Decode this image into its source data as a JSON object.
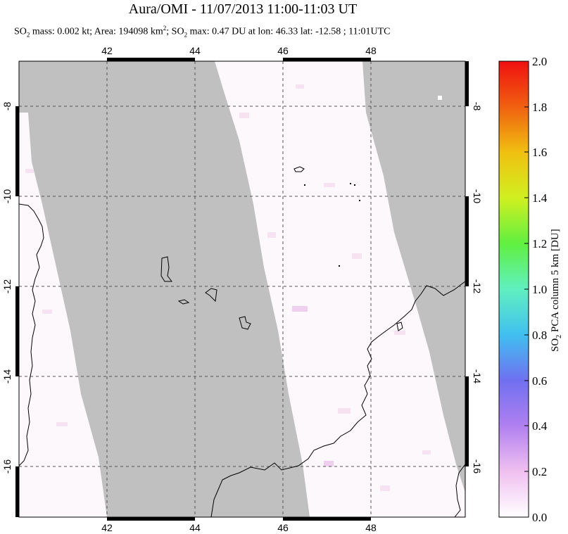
{
  "title": "Aura/OMI - 11/07/2013 11:00-11:03 UT",
  "subtitle": {
    "so2_prefix": "SO",
    "so2_sub": "2",
    "mass_text": " mass: 0.002 kt; Area: 194098 km",
    "area_sup": "2",
    "so2_prefix2": "; SO",
    "so2_sub2": "2",
    "max_text": " max: 0.47 DU at lon: 46.33 lat: -12.58 ; 11:01UTC"
  },
  "map": {
    "lon_range": [
      40,
      50
    ],
    "lat_range": [
      -17.1,
      -7.0
    ],
    "lon_ticks": [
      "42",
      "44",
      "46",
      "48"
    ],
    "lat_ticks": [
      "-8",
      "-10",
      "-12",
      "-14",
      "-16"
    ],
    "background_color": "#c0c0c0",
    "swath_color": "#fdf8fb",
    "coastline_color": "#000000",
    "grid": true
  },
  "colorbar": {
    "label_prefix": "SO",
    "label_sub": "2",
    "label_suffix": " PCA column 5 km [DU]",
    "ticks": [
      "2.0",
      "1.8",
      "1.6",
      "1.4",
      "1.2",
      "1.0",
      "0.8",
      "0.6",
      "0.4",
      "0.2",
      "0.0"
    ],
    "range": [
      0.0,
      2.0
    ],
    "colors": [
      "#ffffff",
      "#f0c0f0",
      "#b080f0",
      "#7070f0",
      "#40c0f0",
      "#60f0c0",
      "#60f040",
      "#d0f020",
      "#f0c010",
      "#f06010",
      "#f01010"
    ]
  }
}
